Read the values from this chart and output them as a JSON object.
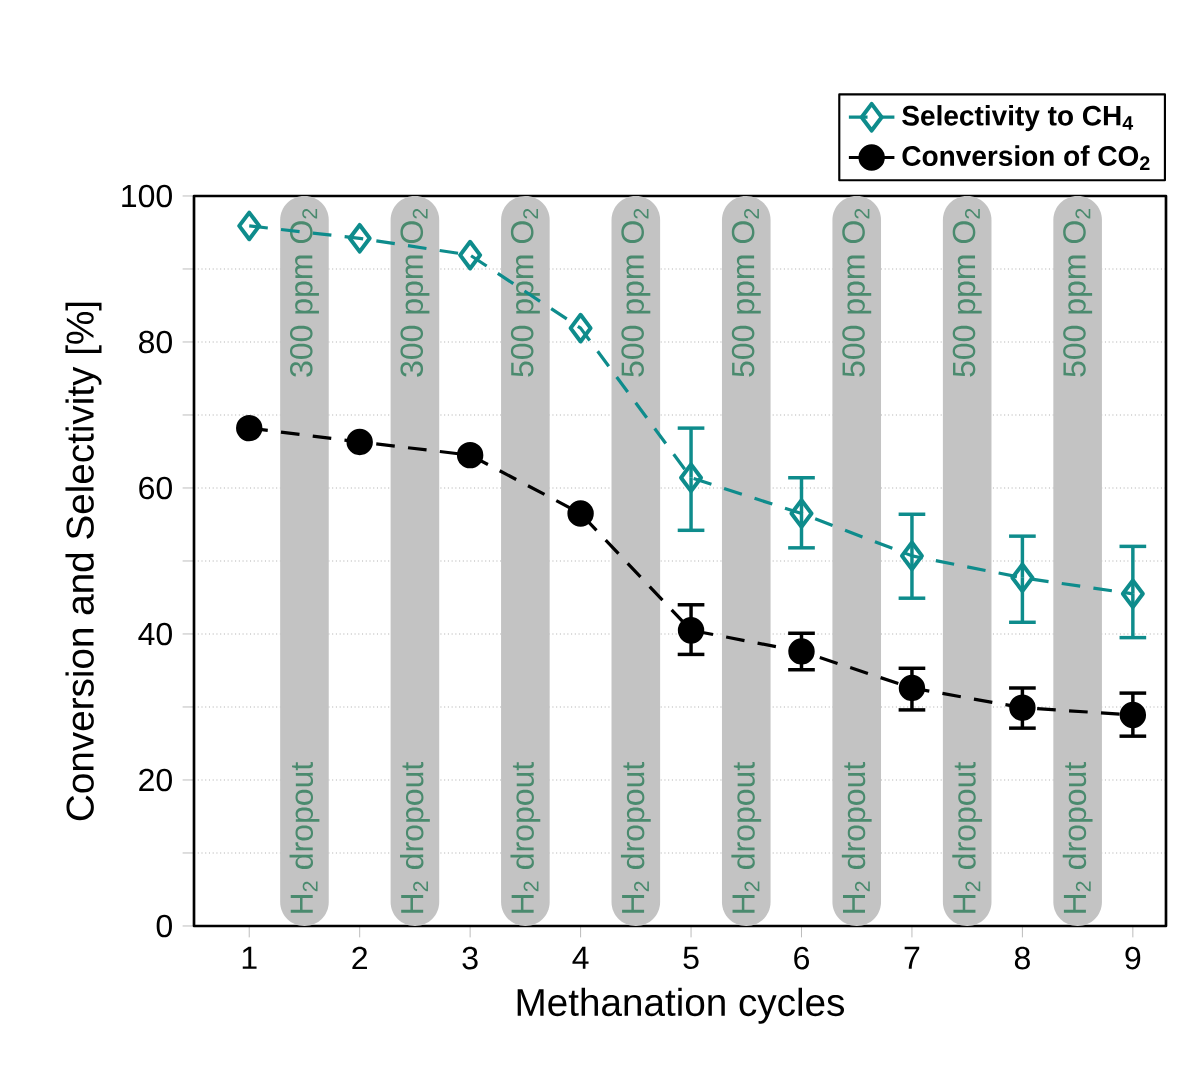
{
  "chart_data": {
    "type": "line",
    "xlabel": "Methanation cycles",
    "ylabel": "Conversion and Selectivity [%]",
    "x": [
      1,
      2,
      3,
      4,
      5,
      6,
      7,
      8,
      9
    ],
    "series": [
      {
        "name": "Selectivity to CH$_{4}$",
        "color": "#0e8c8c",
        "marker": "diamond",
        "values": [
          95.9,
          94.2,
          91.9,
          81.9,
          61.4,
          56.5,
          50.7,
          47.7,
          45.5
        ],
        "errors": [
          null,
          null,
          null,
          null,
          [
            54.2,
            68.2
          ],
          [
            51.8,
            61.4
          ],
          [
            44.9,
            56.4
          ],
          [
            41.6,
            53.4
          ],
          [
            39.5,
            52
          ]
        ]
      },
      {
        "name": "Conversion of CO$_{2}$",
        "color": "#000000",
        "marker": "circle",
        "values": [
          68.2,
          66.3,
          64.5,
          56.5,
          40.5,
          37.6,
          32.6,
          29.9,
          28.9
        ],
        "errors": [
          null,
          null,
          null,
          null,
          [
            37.2,
            44
          ],
          [
            35.1,
            40.1
          ],
          [
            29.6,
            35.3
          ],
          [
            27.1,
            32.6
          ],
          [
            26,
            31.9
          ]
        ]
      }
    ],
    "xlim": [
      0.5,
      9.3
    ],
    "ylim": [
      0,
      100
    ],
    "xticks": [
      1,
      2,
      3,
      4,
      5,
      6,
      7,
      8,
      9
    ],
    "yticks": [
      0,
      {
        "value": 10,
        "label": null
      },
      20,
      {
        "value": 30,
        "label": null
      },
      40,
      {
        "value": 50,
        "label": null
      },
      60,
      {
        "value": 70,
        "label": null
      },
      80,
      {
        "value": 90,
        "label": null
      },
      100
    ],
    "grid": "y",
    "line_style": "dashed",
    "legend": "top right",
    "bands": [
      {
        "axis": "x",
        "from": 1.28,
        "to": 1.72,
        "label": "H$_{2}$ dropout",
        "color": "#c3c3c3"
      },
      {
        "axis": "x",
        "from": 2.28,
        "to": 2.72,
        "label": "H$_{2}$ dropout",
        "color": "#c3c3c3"
      },
      {
        "axis": "x",
        "from": 3.28,
        "to": 3.72,
        "label": "H$_{2}$ dropout",
        "color": "#c3c3c3"
      },
      {
        "axis": "x",
        "from": 4.28,
        "to": 4.72,
        "label": "H$_{2}$ dropout",
        "color": "#c3c3c3"
      },
      {
        "axis": "x",
        "from": 5.28,
        "to": 5.72,
        "label": "H$_{2}$ dropout",
        "color": "#c3c3c3"
      },
      {
        "axis": "x",
        "from": 6.28,
        "to": 6.72,
        "label": "H$_{2}$ dropout",
        "color": "#c3c3c3"
      },
      {
        "axis": "x",
        "from": 7.28,
        "to": 7.72,
        "label": "H$_{2}$ dropout",
        "color": "#c3c3c3"
      },
      {
        "axis": "x",
        "from": 8.28,
        "to": 8.72,
        "label": "H$_{2}$ dropout",
        "color": "#c3c3c3"
      }
    ],
    "annotations": [
      {
        "text": "300 ppm O$_{2}$",
        "x": 1.5,
        "y": 99
      },
      {
        "text": "300 ppm O$_{2}$",
        "x": 2.5,
        "y": 99
      },
      {
        "text": "500 ppm O$_{2}$",
        "x": 3.5,
        "y": 99
      },
      {
        "text": "500 ppm O$_{2}$",
        "x": 4.5,
        "y": 99
      },
      {
        "text": "500 ppm O$_{2}$",
        "x": 5.5,
        "y": 99
      },
      {
        "text": "500 ppm O$_{2}$",
        "x": 6.5,
        "y": 99
      },
      {
        "text": "500 ppm O$_{2}$",
        "x": 7.5,
        "y": 99
      },
      {
        "text": "500 ppm O$_{2}$",
        "x": 8.5,
        "y": 99
      }
    ]
  }
}
